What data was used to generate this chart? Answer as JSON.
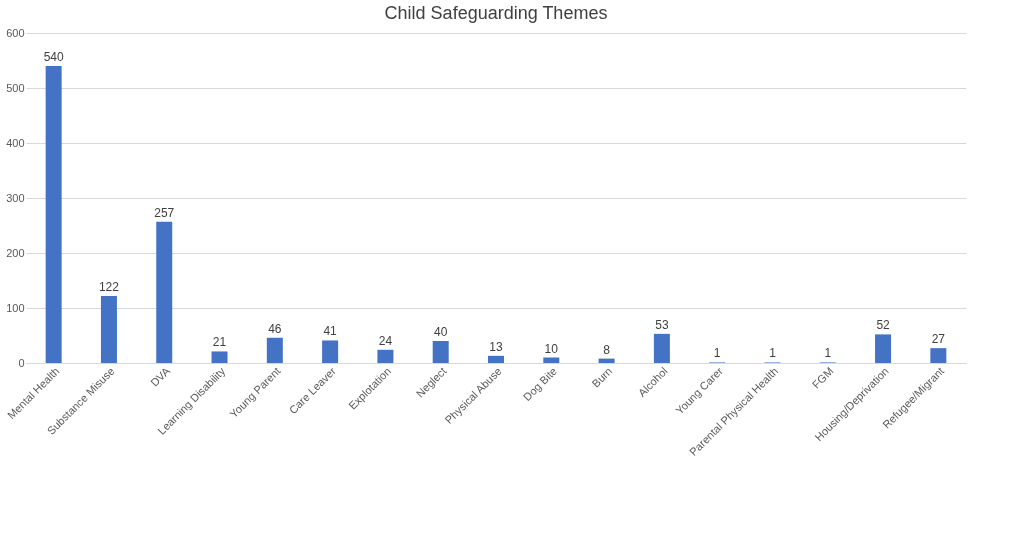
{
  "chart_data": {
    "type": "bar",
    "title": "Child Safeguarding Themes",
    "categories": [
      "Mental Health",
      "Substance Misuse",
      "DVA",
      "Learning Disability",
      "Young Parent",
      "Care Leaver",
      "Explotation",
      "Neglect",
      "Physical Abuse",
      "Dog Bite",
      "Burn",
      "Alcohol",
      "Young Carer",
      "Parental Physical Health",
      "FGM",
      "Housing/Deprivation",
      "Refugee/Migrant"
    ],
    "values": [
      540,
      122,
      257,
      21,
      46,
      41,
      24,
      40,
      13,
      10,
      8,
      53,
      1,
      1,
      1,
      52,
      27
    ],
    "color": "#4472c4",
    "ylim": [
      0,
      600
    ],
    "yticks": [
      0,
      100,
      200,
      300,
      400,
      500,
      600
    ],
    "grid": "y",
    "data_labels": true
  }
}
